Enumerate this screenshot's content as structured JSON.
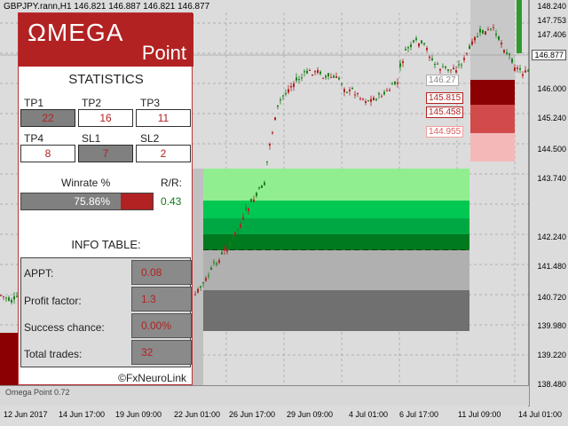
{
  "symbol_header": "GBPJPY.rann,H1  146.821 146.887 146.821 146.877",
  "logo": {
    "omega": "ΩMEGA",
    "point": "Point"
  },
  "stats": {
    "title": "STATISTICS",
    "tp1_label": "TP1",
    "tp1_value": "22",
    "tp2_label": "TP2",
    "tp2_value": "16",
    "tp3_label": "TP3",
    "tp3_value": "11",
    "tp4_label": "TP4",
    "tp4_value": "8",
    "sl1_label": "SL1",
    "sl1_value": "7",
    "sl2_label": "SL2",
    "sl2_value": "2",
    "winrate_label": "Winrate %",
    "winrate_value": "75.86%",
    "winrate_fraction": 0.7586,
    "rr_label": "R/R:",
    "rr_value": "0.43"
  },
  "info": {
    "title": "INFO TABLE:",
    "rows": [
      {
        "label": "APPT:",
        "value": "0.08"
      },
      {
        "label": "Profit factor:",
        "value": "1.3"
      },
      {
        "label": "Success chance:",
        "value": "0.00%"
      },
      {
        "label": "Total trades:",
        "value": "32"
      }
    ],
    "credit": "©FxNeuroLink"
  },
  "price_axis": [
    "148.240",
    "147.753",
    "147.406",
    "146.877",
    "146.000",
    "145.240",
    "144.500",
    "143.740",
    "142.240",
    "141.480",
    "140.720",
    "139.980",
    "139.220",
    "138.480"
  ],
  "current_price": "146.877",
  "level_labels": {
    "a": "146.27",
    "b": "145.815",
    "c": "145.458",
    "d": "144.955"
  },
  "time_axis": [
    "12 Jun 2017",
    "14 Jun 17:00",
    "19 Jun 09:00",
    "22 Jun 01:00",
    "26 Jun 17:00",
    "29 Jun 09:00",
    "4 Jul 01:00",
    "6 Jul 17:00",
    "11 Jul 09:00",
    "14 Jul 01:00"
  ],
  "indicator_label": "Omega Point 0.72",
  "colors": {
    "brand": "#b22222",
    "zone_green_light": "#90ee90",
    "zone_green": "#00c853",
    "zone_green_dark": "#007a1e",
    "candle_up": "#1a7f1a",
    "candle_down": "#b22222"
  }
}
